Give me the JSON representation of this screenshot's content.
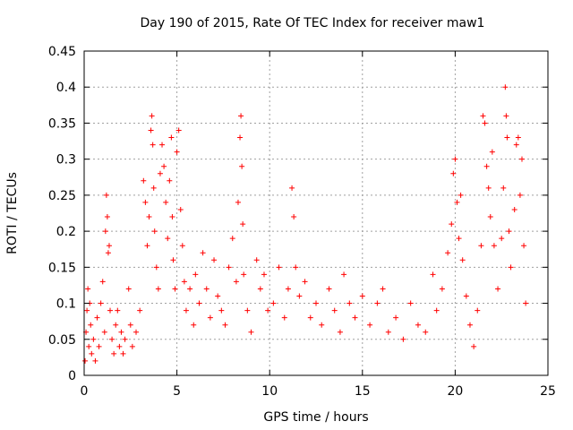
{
  "chart_data": {
    "type": "scatter",
    "title": "Day 190 of 2015, Rate Of TEC Index for receiver maw1",
    "xlabel": "GPS time / hours",
    "ylabel": "ROTI / TECUs",
    "xlim": [
      0,
      25
    ],
    "ylim": [
      0,
      0.45
    ],
    "xticks": [
      0,
      5,
      10,
      15,
      20,
      25
    ],
    "xtick_labels": [
      "0",
      "5",
      "10",
      "15",
      "20",
      "25"
    ],
    "yticks": [
      0,
      0.05,
      0.1,
      0.15,
      0.2,
      0.25,
      0.3,
      0.35,
      0.4,
      0.45
    ],
    "ytick_labels": [
      "0",
      "0.05",
      "0.1",
      "0.15",
      "0.2",
      "0.25",
      "0.3",
      "0.35",
      "0.4",
      "0.45"
    ],
    "grid": true,
    "legend": "none",
    "marker": "+",
    "color": "#ff0000",
    "series": [
      {
        "points": [
          [
            0.05,
            0.02
          ],
          [
            0.1,
            0.06
          ],
          [
            0.15,
            0.09
          ],
          [
            0.2,
            0.12
          ],
          [
            0.25,
            0.04
          ],
          [
            0.3,
            0.1
          ],
          [
            0.35,
            0.07
          ],
          [
            0.4,
            0.03
          ],
          [
            0.5,
            0.05
          ],
          [
            0.6,
            0.02
          ],
          [
            0.7,
            0.08
          ],
          [
            0.8,
            0.04
          ],
          [
            0.9,
            0.1
          ],
          [
            1.0,
            0.13
          ],
          [
            1.1,
            0.06
          ],
          [
            1.15,
            0.2
          ],
          [
            1.2,
            0.25
          ],
          [
            1.25,
            0.22
          ],
          [
            1.3,
            0.17
          ],
          [
            1.35,
            0.18
          ],
          [
            1.4,
            0.09
          ],
          [
            1.5,
            0.05
          ],
          [
            1.6,
            0.03
          ],
          [
            1.7,
            0.07
          ],
          [
            1.8,
            0.09
          ],
          [
            1.9,
            0.04
          ],
          [
            2.0,
            0.06
          ],
          [
            2.1,
            0.03
          ],
          [
            2.2,
            0.05
          ],
          [
            2.4,
            0.12
          ],
          [
            2.5,
            0.07
          ],
          [
            2.6,
            0.04
          ],
          [
            2.8,
            0.06
          ],
          [
            3.0,
            0.09
          ],
          [
            3.2,
            0.27
          ],
          [
            3.3,
            0.24
          ],
          [
            3.4,
            0.18
          ],
          [
            3.5,
            0.22
          ],
          [
            3.6,
            0.34
          ],
          [
            3.65,
            0.36
          ],
          [
            3.7,
            0.32
          ],
          [
            3.75,
            0.26
          ],
          [
            3.8,
            0.2
          ],
          [
            3.9,
            0.15
          ],
          [
            4.0,
            0.12
          ],
          [
            4.1,
            0.28
          ],
          [
            4.2,
            0.32
          ],
          [
            4.3,
            0.29
          ],
          [
            4.4,
            0.24
          ],
          [
            4.5,
            0.19
          ],
          [
            4.6,
            0.27
          ],
          [
            4.7,
            0.33
          ],
          [
            4.75,
            0.22
          ],
          [
            4.8,
            0.16
          ],
          [
            4.9,
            0.12
          ],
          [
            5.0,
            0.31
          ],
          [
            5.1,
            0.34
          ],
          [
            5.2,
            0.23
          ],
          [
            5.3,
            0.18
          ],
          [
            5.4,
            0.13
          ],
          [
            5.5,
            0.09
          ],
          [
            5.7,
            0.12
          ],
          [
            5.9,
            0.07
          ],
          [
            6.0,
            0.14
          ],
          [
            6.2,
            0.1
          ],
          [
            6.4,
            0.17
          ],
          [
            6.6,
            0.12
          ],
          [
            6.8,
            0.08
          ],
          [
            7.0,
            0.16
          ],
          [
            7.2,
            0.11
          ],
          [
            7.4,
            0.09
          ],
          [
            7.6,
            0.07
          ],
          [
            7.8,
            0.15
          ],
          [
            8.0,
            0.19
          ],
          [
            8.2,
            0.13
          ],
          [
            8.3,
            0.24
          ],
          [
            8.4,
            0.33
          ],
          [
            8.45,
            0.36
          ],
          [
            8.5,
            0.29
          ],
          [
            8.55,
            0.21
          ],
          [
            8.6,
            0.14
          ],
          [
            8.8,
            0.09
          ],
          [
            9.0,
            0.06
          ],
          [
            9.3,
            0.16
          ],
          [
            9.5,
            0.12
          ],
          [
            9.7,
            0.14
          ],
          [
            9.9,
            0.09
          ],
          [
            10.2,
            0.1
          ],
          [
            10.5,
            0.15
          ],
          [
            10.8,
            0.08
          ],
          [
            11.0,
            0.12
          ],
          [
            11.2,
            0.26
          ],
          [
            11.3,
            0.22
          ],
          [
            11.4,
            0.15
          ],
          [
            11.6,
            0.11
          ],
          [
            11.9,
            0.13
          ],
          [
            12.2,
            0.08
          ],
          [
            12.5,
            0.1
          ],
          [
            12.8,
            0.07
          ],
          [
            13.2,
            0.12
          ],
          [
            13.5,
            0.09
          ],
          [
            13.8,
            0.06
          ],
          [
            14.0,
            0.14
          ],
          [
            14.3,
            0.1
          ],
          [
            14.6,
            0.08
          ],
          [
            15.0,
            0.11
          ],
          [
            15.4,
            0.07
          ],
          [
            15.8,
            0.1
          ],
          [
            16.1,
            0.12
          ],
          [
            16.4,
            0.06
          ],
          [
            16.8,
            0.08
          ],
          [
            17.2,
            0.05
          ],
          [
            17.6,
            0.1
          ],
          [
            18.0,
            0.07
          ],
          [
            18.4,
            0.06
          ],
          [
            18.8,
            0.14
          ],
          [
            19.0,
            0.09
          ],
          [
            19.3,
            0.12
          ],
          [
            19.6,
            0.17
          ],
          [
            19.8,
            0.21
          ],
          [
            19.9,
            0.28
          ],
          [
            20.0,
            0.3
          ],
          [
            20.1,
            0.24
          ],
          [
            20.2,
            0.19
          ],
          [
            20.3,
            0.25
          ],
          [
            20.4,
            0.16
          ],
          [
            20.6,
            0.11
          ],
          [
            20.8,
            0.07
          ],
          [
            21.0,
            0.04
          ],
          [
            21.2,
            0.09
          ],
          [
            21.4,
            0.18
          ],
          [
            21.5,
            0.36
          ],
          [
            21.6,
            0.35
          ],
          [
            21.7,
            0.29
          ],
          [
            21.8,
            0.26
          ],
          [
            21.9,
            0.22
          ],
          [
            22.0,
            0.31
          ],
          [
            22.1,
            0.18
          ],
          [
            22.3,
            0.12
          ],
          [
            22.5,
            0.19
          ],
          [
            22.6,
            0.26
          ],
          [
            22.7,
            0.4
          ],
          [
            22.75,
            0.36
          ],
          [
            22.8,
            0.33
          ],
          [
            22.9,
            0.2
          ],
          [
            23.0,
            0.15
          ],
          [
            23.2,
            0.23
          ],
          [
            23.3,
            0.32
          ],
          [
            23.4,
            0.33
          ],
          [
            23.5,
            0.25
          ],
          [
            23.6,
            0.3
          ],
          [
            23.7,
            0.18
          ],
          [
            23.8,
            0.1
          ]
        ]
      }
    ]
  }
}
